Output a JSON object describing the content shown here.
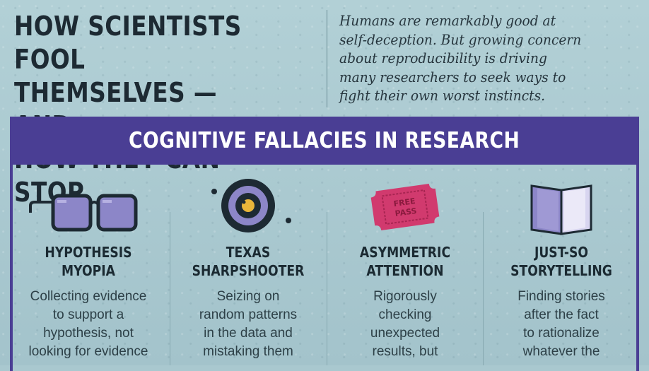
{
  "header": {
    "title_lines": [
      "HOW SCIENTISTS FOOL",
      "THEMSELVES — AND",
      "HOW THEY CAN STOP"
    ],
    "intro_lines": [
      "Humans are remarkably good at",
      "self-deception. But growing concern",
      "about reproducibility is driving",
      "many researchers to seek ways to",
      "fight their own worst instincts."
    ]
  },
  "banner": {
    "label": "COGNITIVE FALLACIES IN RESEARCH"
  },
  "fallacies": [
    {
      "icon": "eyeglasses-icon",
      "name_lines": [
        "HYPOTHESIS",
        "MYOPIA"
      ],
      "desc_lines": [
        "Collecting evidence",
        "to support a",
        "hypothesis, not",
        "looking for evidence"
      ]
    },
    {
      "icon": "target-icon",
      "name_lines": [
        "TEXAS",
        "SHARPSHOOTER"
      ],
      "desc_lines": [
        "Seizing on",
        "random patterns",
        "in the data and",
        "mistaking them"
      ]
    },
    {
      "icon": "free-pass-ticket-icon",
      "icon_text_lines": [
        "FREE",
        "PASS"
      ],
      "name_lines": [
        "ASYMMETRIC",
        "ATTENTION"
      ],
      "desc_lines": [
        "Rigorously",
        "checking",
        "unexpected",
        "results, but"
      ]
    },
    {
      "icon": "open-book-icon",
      "name_lines": [
        "JUST-SO",
        "STORYTELLING"
      ],
      "desc_lines": [
        "Finding stories",
        "after the fact",
        "to rationalize",
        "whatever the"
      ]
    }
  ],
  "colors": {
    "banner": "#4a3e94",
    "background": "#a9c8cf",
    "ticket": "#d13a6e",
    "icon_fill": "#8c86c8"
  }
}
